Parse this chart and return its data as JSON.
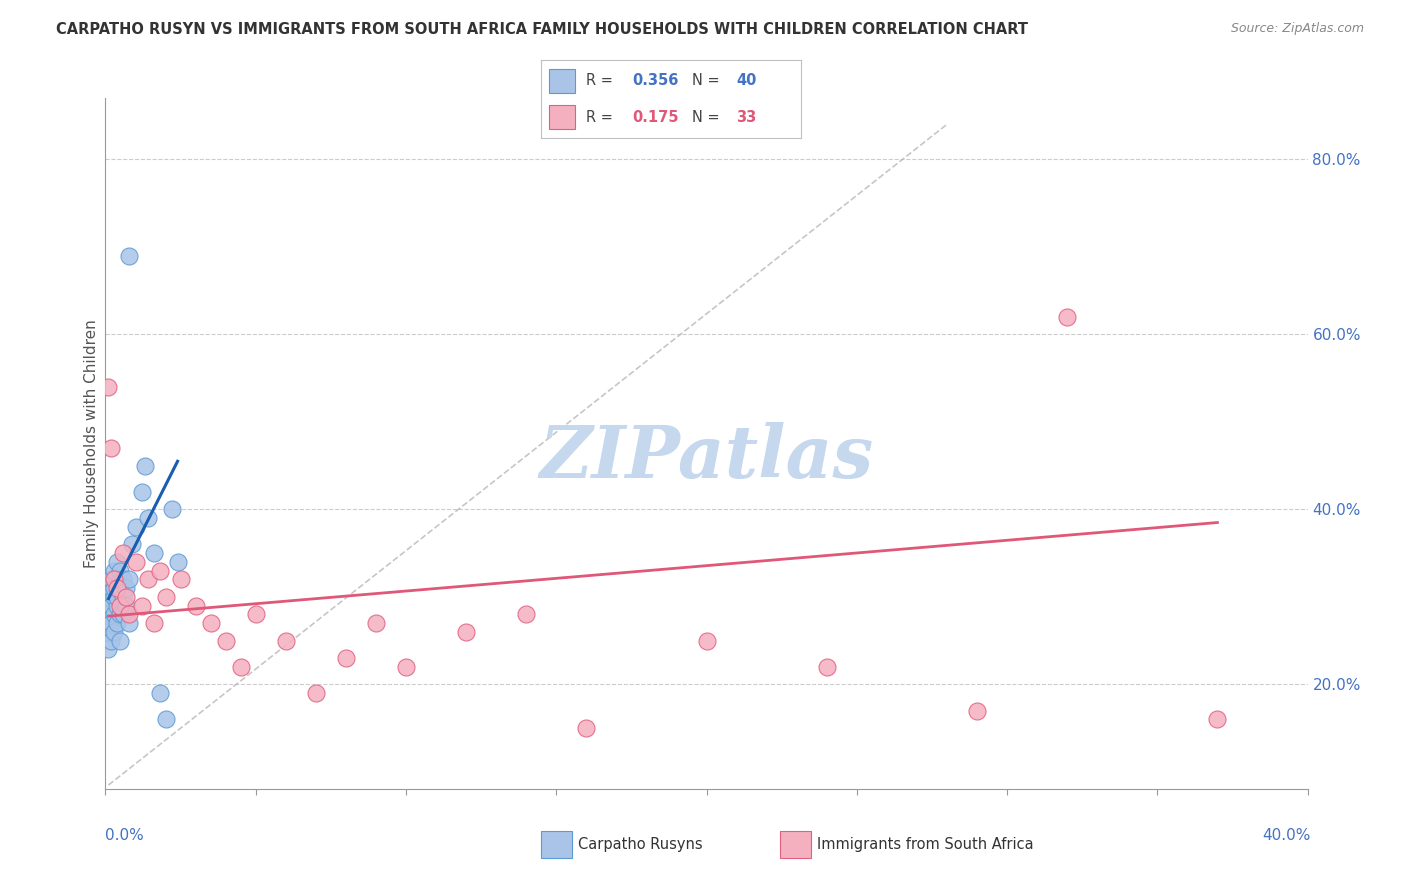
{
  "title": "CARPATHO RUSYN VS IMMIGRANTS FROM SOUTH AFRICA FAMILY HOUSEHOLDS WITH CHILDREN CORRELATION CHART",
  "source": "Source: ZipAtlas.com",
  "ylabel": "Family Households with Children",
  "xmin": 0.0,
  "xmax": 0.4,
  "ymin": 0.08,
  "ymax": 0.87,
  "y_ticks": [
    0.2,
    0.4,
    0.6,
    0.8
  ],
  "y_tick_labels": [
    "20.0%",
    "40.0%",
    "60.0%",
    "80.0%"
  ],
  "blue_fill": "#aac4e8",
  "blue_edge": "#5b9bd5",
  "pink_fill": "#f5b0c0",
  "pink_edge": "#e06080",
  "blue_line_color": "#1a5cb0",
  "pink_line_color": "#e05878",
  "ref_line_color": "#b8b8b8",
  "tick_color": "#4472c4",
  "watermark_color": "#c5d8ee",
  "legend_R1_val": "0.356",
  "legend_N1_val": "40",
  "legend_R2_val": "0.175",
  "legend_N2_val": "33",
  "watermark": "ZIPatlas",
  "blue_scatter_x": [
    0.001,
    0.001,
    0.001,
    0.001,
    0.002,
    0.002,
    0.002,
    0.002,
    0.002,
    0.003,
    0.003,
    0.003,
    0.003,
    0.003,
    0.004,
    0.004,
    0.004,
    0.004,
    0.005,
    0.005,
    0.005,
    0.005,
    0.006,
    0.006,
    0.006,
    0.007,
    0.007,
    0.008,
    0.008,
    0.009,
    0.01,
    0.012,
    0.013,
    0.014,
    0.016,
    0.018,
    0.02,
    0.022,
    0.024,
    0.008
  ],
  "blue_scatter_y": [
    0.28,
    0.3,
    0.24,
    0.26,
    0.29,
    0.31,
    0.27,
    0.32,
    0.25,
    0.3,
    0.28,
    0.33,
    0.26,
    0.31,
    0.29,
    0.27,
    0.34,
    0.3,
    0.31,
    0.28,
    0.33,
    0.25,
    0.3,
    0.32,
    0.28,
    0.31,
    0.29,
    0.32,
    0.27,
    0.36,
    0.38,
    0.42,
    0.45,
    0.39,
    0.35,
    0.19,
    0.16,
    0.4,
    0.34,
    0.69
  ],
  "pink_scatter_x": [
    0.001,
    0.002,
    0.003,
    0.004,
    0.005,
    0.006,
    0.007,
    0.008,
    0.01,
    0.012,
    0.014,
    0.016,
    0.018,
    0.02,
    0.025,
    0.03,
    0.035,
    0.04,
    0.045,
    0.05,
    0.06,
    0.07,
    0.08,
    0.09,
    0.1,
    0.12,
    0.14,
    0.16,
    0.2,
    0.24,
    0.29,
    0.32,
    0.37
  ],
  "pink_scatter_y": [
    0.54,
    0.47,
    0.32,
    0.31,
    0.29,
    0.35,
    0.3,
    0.28,
    0.34,
    0.29,
    0.32,
    0.27,
    0.33,
    0.3,
    0.32,
    0.29,
    0.27,
    0.25,
    0.22,
    0.28,
    0.25,
    0.19,
    0.23,
    0.27,
    0.22,
    0.26,
    0.28,
    0.15,
    0.25,
    0.22,
    0.17,
    0.62,
    0.16
  ],
  "blue_line_x": [
    0.001,
    0.024
  ],
  "blue_line_y": [
    0.298,
    0.455
  ],
  "pink_line_x": [
    0.001,
    0.37
  ],
  "pink_line_y": [
    0.278,
    0.385
  ],
  "ref_line_x": [
    0.001,
    0.28
  ],
  "ref_line_y": [
    0.085,
    0.84
  ]
}
